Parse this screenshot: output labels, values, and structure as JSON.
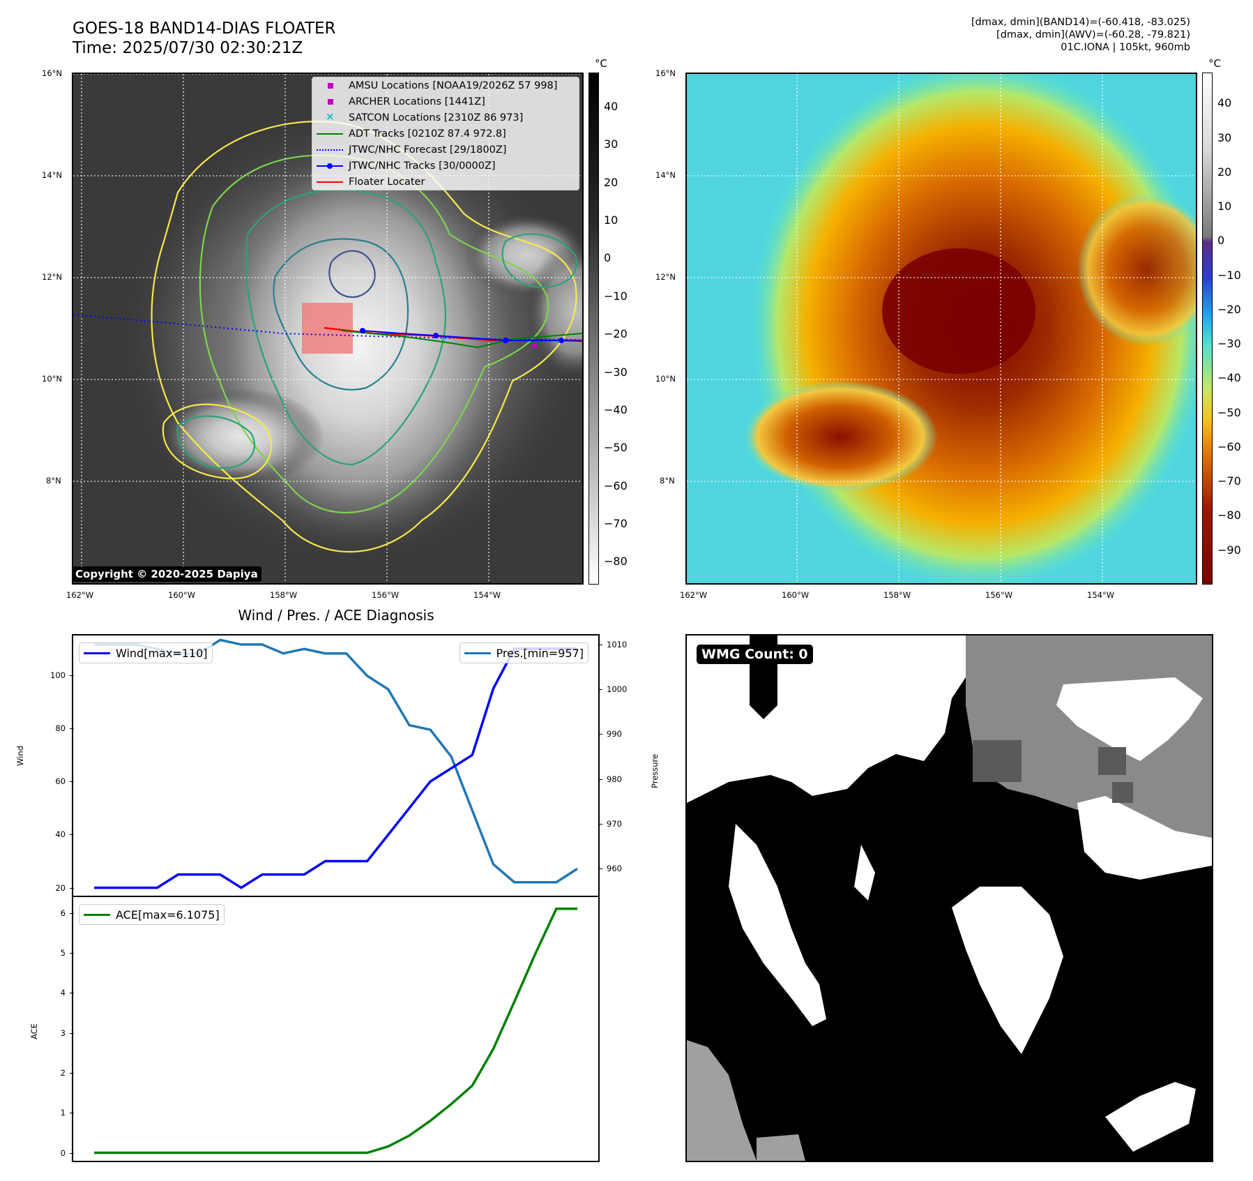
{
  "header": {
    "title_line1": "GOES-18 BAND14-DIAS FLOATER",
    "title_line2": "Time: 2025/07/30 02:30:21Z",
    "right_line1": "[dmax, dmin](BAND14)=(-60.418, -83.025)",
    "right_line2": "[dmax, dmin](AWV)=(-60.28, -79.821)",
    "right_line3": "01C.IONA | 105kt, 960mb"
  },
  "map_axes": {
    "lat_labels": [
      "16°N",
      "14°N",
      "12°N",
      "10°N",
      "8°N"
    ],
    "lon_labels": [
      "162°W",
      "160°W",
      "158°W",
      "156°W",
      "154°W"
    ],
    "lat_values": [
      16,
      14,
      12,
      10,
      8
    ],
    "lon_values": [
      -162,
      -160,
      -158,
      -156,
      -154
    ]
  },
  "left_map": {
    "colorbar_unit": "°C",
    "colorbar_ticks": [
      "40",
      "30",
      "20",
      "10",
      "0",
      "−10",
      "−20",
      "−30",
      "−40",
      "−50",
      "−60",
      "−70",
      "−80"
    ],
    "legend": [
      {
        "label": "AMSU Locations [NOAA19/2026Z 57 998]",
        "icon": "square-marker",
        "color": "#bf00bf"
      },
      {
        "label": "ARCHER Locations [1441Z]",
        "icon": "square-marker",
        "color": "#bf00bf"
      },
      {
        "label": "SATCON Locations [2310Z 86 973]",
        "icon": "x-marker",
        "color": "#17becf"
      },
      {
        "label": "ADT Tracks [0210Z 87.4 972.8]",
        "icon": "solid-line",
        "color": "#008000"
      },
      {
        "label": "JTWC/NHC Forecast [29/1800Z]",
        "icon": "dotted-line",
        "color": "#0000ff"
      },
      {
        "label": "JTWC/NHC Tracks [30/0000Z]",
        "icon": "line-dot",
        "color": "#0000ff"
      },
      {
        "label": "Floater Locater",
        "icon": "solid-line",
        "color": "#ff0000"
      }
    ],
    "copyright": "Copyright © 2020-2025 Dapiya"
  },
  "right_map": {
    "colorbar_unit": "°C",
    "colorbar_ticks": [
      "40",
      "30",
      "20",
      "10",
      "0",
      "−10",
      "−20",
      "−30",
      "−40",
      "−50",
      "−60",
      "−70",
      "−80",
      "−90"
    ]
  },
  "chart_data": [
    {
      "type": "line",
      "title": "Wind / Pres. / ACE Diagnosis",
      "ylabel": "Wind",
      "ylabel_right": "Pressure",
      "ylim": [
        17,
        115
      ],
      "ylim_right": [
        954,
        1012
      ],
      "yticks": [
        20,
        40,
        60,
        80,
        100
      ],
      "yticks_right": [
        960,
        970,
        980,
        990,
        1000,
        1010
      ],
      "x": [
        1,
        2,
        3,
        4,
        5,
        6,
        7,
        8,
        9,
        10,
        11,
        12,
        13,
        14,
        15,
        16,
        17,
        18,
        19,
        20,
        21,
        22,
        23,
        24
      ],
      "series": [
        {
          "name": "Wind[max=110]",
          "color": "#0000ff",
          "axis": "left",
          "values": [
            20,
            20,
            20,
            20,
            25,
            25,
            25,
            20,
            25,
            25,
            25,
            30,
            30,
            30,
            40,
            50,
            60,
            65,
            70,
            95,
            110,
            110,
            110,
            110
          ]
        },
        {
          "name": "Pres.[min=957]",
          "color": "#1f77b4",
          "axis": "right",
          "values": [
            1010,
            1010,
            1010,
            1009,
            1008,
            1008,
            1011,
            1010,
            1010,
            1008,
            1009,
            1008,
            1008,
            1003,
            1000,
            992,
            991,
            985,
            973,
            961,
            957,
            957,
            957,
            960
          ]
        }
      ]
    },
    {
      "type": "line",
      "ylabel": "ACE",
      "ylim": [
        -0.2,
        6.4
      ],
      "yticks": [
        0,
        1,
        2,
        3,
        4,
        5,
        6
      ],
      "x": [
        1,
        2,
        3,
        4,
        5,
        6,
        7,
        8,
        9,
        10,
        11,
        12,
        13,
        14,
        15,
        16,
        17,
        18,
        19,
        20,
        21,
        22,
        23,
        24
      ],
      "series": [
        {
          "name": "ACE[max=6.1075]",
          "color": "#008000",
          "values": [
            0,
            0,
            0,
            0,
            0,
            0,
            0,
            0,
            0,
            0,
            0,
            0,
            0,
            0,
            0.16,
            0.43,
            0.8,
            1.22,
            1.68,
            2.6,
            3.78,
            4.98,
            6.1075,
            6.1075
          ]
        }
      ]
    }
  ],
  "wmg_panel": {
    "badge": "WMG Count: 0"
  }
}
